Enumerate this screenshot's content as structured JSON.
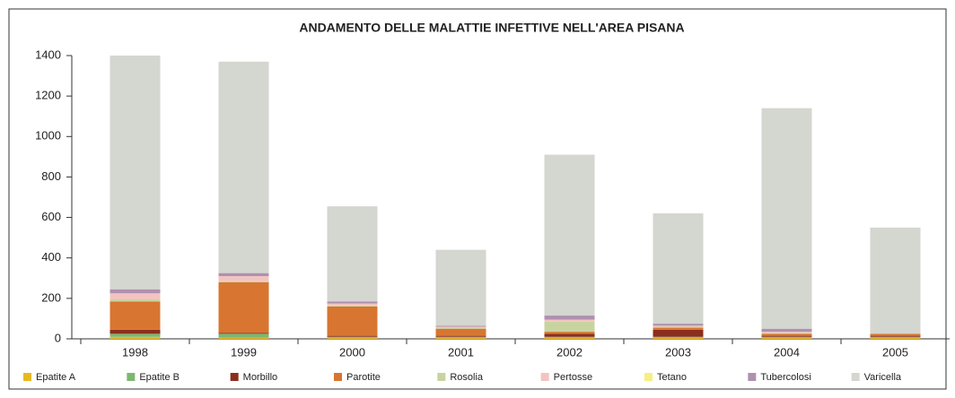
{
  "chart_data": {
    "type": "stacked_bar",
    "title": "ANDAMENTO DELLE MALATTIE INFETTIVE NELL'AREA PISANA",
    "categories": [
      "1998",
      "1999",
      "2000",
      "2001",
      "2002",
      "2003",
      "2004",
      "2005"
    ],
    "series": [
      {
        "name": "Epatite A",
        "color": "#e8b820",
        "values": [
          10,
          5,
          5,
          5,
          5,
          5,
          5,
          5
        ]
      },
      {
        "name": "Epatite B",
        "color": "#7cb870",
        "values": [
          15,
          20,
          5,
          5,
          5,
          5,
          5,
          5
        ]
      },
      {
        "name": "Morbillo",
        "color": "#8b2e1e",
        "values": [
          20,
          5,
          5,
          5,
          15,
          35,
          5,
          5
        ]
      },
      {
        "name": "Parotite",
        "color": "#d87530",
        "values": [
          140,
          250,
          145,
          35,
          10,
          10,
          10,
          10
        ]
      },
      {
        "name": "Rosolia",
        "color": "#c8d4a0",
        "values": [
          10,
          5,
          5,
          5,
          50,
          5,
          5,
          0
        ]
      },
      {
        "name": "Pertosse",
        "color": "#f2c4c0",
        "values": [
          30,
          25,
          10,
          5,
          10,
          5,
          5,
          0
        ]
      },
      {
        "name": "Tetano",
        "color": "#f5f080",
        "values": [
          0,
          0,
          0,
          0,
          0,
          0,
          0,
          0
        ]
      },
      {
        "name": "Tubercolosi",
        "color": "#b090b0",
        "values": [
          20,
          15,
          10,
          5,
          20,
          10,
          15,
          0
        ]
      },
      {
        "name": "Varicella",
        "color": "#d4d6d0",
        "values": [
          1155,
          1045,
          470,
          375,
          795,
          545,
          1090,
          525
        ]
      }
    ],
    "ylim": [
      0,
      1400
    ],
    "yticks": [
      0,
      200,
      400,
      600,
      800,
      1000,
      1200,
      1400
    ],
    "grid": false
  }
}
